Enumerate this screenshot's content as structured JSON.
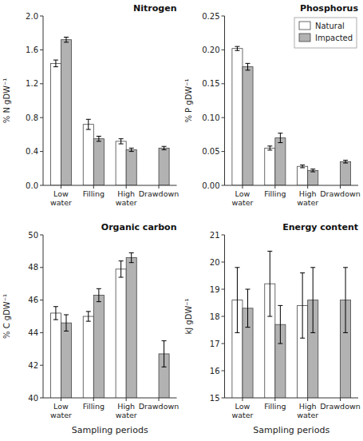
{
  "chart_data": [
    {
      "type": "bar",
      "title": "Nitrogen",
      "categories": [
        "Low\nwater",
        "Filling",
        "High\nwater",
        "Drawdown"
      ],
      "series": [
        {
          "name": "Natural",
          "color": "#ffffff",
          "values": [
            1.44,
            0.72,
            0.52,
            null
          ],
          "errors": [
            0.04,
            0.06,
            0.03,
            null
          ]
        },
        {
          "name": "Impacted",
          "color": "#b2b2b2",
          "values": [
            1.72,
            0.55,
            0.42,
            0.44
          ],
          "errors": [
            0.03,
            0.03,
            0.02,
            0.02
          ]
        }
      ],
      "ylabel": "% N gDW⁻¹",
      "ylim": [
        0,
        2.0
      ],
      "yticks": [
        {
          "value": 0,
          "label": "0.0"
        },
        0.4,
        0.8,
        1.2,
        1.6,
        {
          "value": 2.0,
          "label": "2.0"
        }
      ],
      "grid": false
    },
    {
      "type": "bar",
      "title": "Phosphorus",
      "categories": [
        "Low\nwater",
        "Filling",
        "High\nwater",
        "Drawdown"
      ],
      "series": [
        {
          "name": "Natural",
          "color": "#ffffff",
          "values": [
            0.202,
            0.055,
            0.028,
            null
          ],
          "errors": [
            0.003,
            0.003,
            0.002,
            null
          ]
        },
        {
          "name": "Impacted",
          "color": "#b2b2b2",
          "values": [
            0.175,
            0.07,
            0.022,
            0.035
          ],
          "errors": [
            0.005,
            0.007,
            0.002,
            0.002
          ]
        }
      ],
      "ylabel": "% P gDW⁻¹",
      "ylim": [
        0,
        0.25
      ],
      "yticks": [
        {
          "value": 0,
          "label": "0.00"
        },
        0.05,
        {
          "value": 0.1,
          "label": "0.10"
        },
        0.15,
        {
          "value": 0.2,
          "label": "0.20"
        },
        0.25
      ],
      "grid": false,
      "legend": "upper right"
    },
    {
      "type": "bar",
      "title": "Organic carbon",
      "categories": [
        "Low\nwater",
        "Filling",
        "High\nwater",
        "Drawdown"
      ],
      "series": [
        {
          "name": "Natural",
          "color": "#ffffff",
          "values": [
            45.2,
            45.0,
            47.9,
            null
          ],
          "errors": [
            0.4,
            0.3,
            0.5,
            null
          ]
        },
        {
          "name": "Impacted",
          "color": "#b2b2b2",
          "values": [
            44.6,
            46.3,
            48.6,
            42.7
          ],
          "errors": [
            0.5,
            0.4,
            0.3,
            0.8
          ]
        }
      ],
      "ylabel": "% C gDW⁻¹",
      "xlabel": "Sampling periods",
      "ylim": [
        40,
        50
      ],
      "yticks": [
        40,
        42,
        44,
        46,
        48,
        50
      ],
      "grid": false
    },
    {
      "type": "bar",
      "title": "Energy content",
      "categories": [
        "Low\nwater",
        "Filling",
        "High\nwater",
        "Drawdown"
      ],
      "series": [
        {
          "name": "Natural",
          "color": "#ffffff",
          "values": [
            18.6,
            19.2,
            18.4,
            null
          ],
          "errors": [
            1.2,
            1.2,
            1.2,
            null
          ]
        },
        {
          "name": "Impacted",
          "color": "#b2b2b2",
          "values": [
            18.3,
            17.7,
            18.6,
            18.6
          ],
          "errors": [
            0.7,
            0.7,
            1.2,
            1.2
          ]
        }
      ],
      "ylabel": "kJ gDW⁻¹",
      "xlabel": "Sampling periods",
      "ylim": [
        15,
        21
      ],
      "yticks": [
        15,
        16,
        17,
        18,
        19,
        20,
        21
      ],
      "grid": false
    }
  ]
}
